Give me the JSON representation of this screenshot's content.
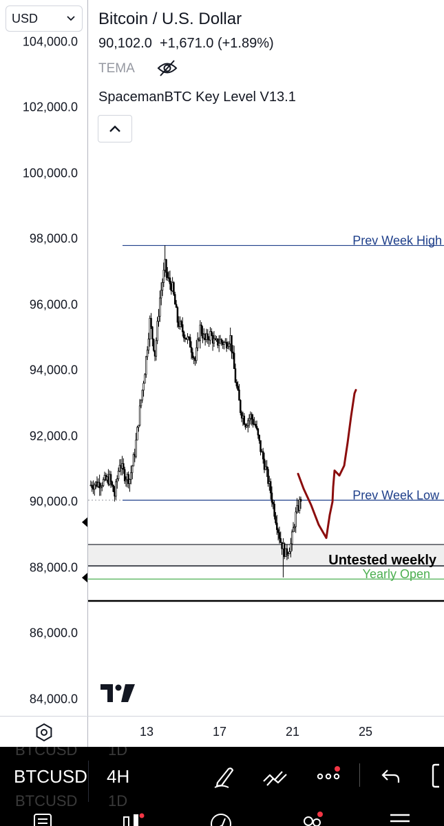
{
  "currency_selector": {
    "value": "USD"
  },
  "legend": {
    "title": "Bitcoin / U.S. Dollar",
    "price": "90,102.0",
    "change": "+1,671.0 (+1.89%)",
    "indicator_tema": "TEMA",
    "indicator_keylevel": "SpacemanBTC Key Level V13.1"
  },
  "price_axis": {
    "labels": [
      {
        "value": 104000,
        "text": "104,000.0"
      },
      {
        "value": 102000,
        "text": "102,000.0"
      },
      {
        "value": 100000,
        "text": "100,000.0"
      },
      {
        "value": 98000,
        "text": "98,000.0"
      },
      {
        "value": 96000,
        "text": "96,000.0"
      },
      {
        "value": 94000,
        "text": "94,000.0"
      },
      {
        "value": 92000,
        "text": "92,000.0"
      },
      {
        "value": 90000,
        "text": "90,000.0"
      },
      {
        "value": 88000,
        "text": "88,000.0"
      },
      {
        "value": 86000,
        "text": "86,000.0"
      },
      {
        "value": 84000,
        "text": "84,000.0"
      }
    ]
  },
  "time_axis": {
    "labels": [
      "13",
      "17",
      "21",
      "25"
    ]
  },
  "key_levels": {
    "prev_week_high": {
      "label": "Prev Week High",
      "price": 97800,
      "color": "#1e3f8a"
    },
    "prev_week_low": {
      "label": "Prev Week Low",
      "price": 90050,
      "color": "#1e3f8a"
    },
    "yearly_open": {
      "label": "Yearly Open",
      "price": 87650,
      "color": "#4caf50"
    },
    "untested_weekly": {
      "label": "Untested weekly",
      "top": 88700,
      "bottom": 88050
    }
  },
  "drawing": {
    "color": "#8b0d0d"
  },
  "toolbar": {
    "symbol": "BTCUSD",
    "timeframe": "4H",
    "ghost_symbol": "BTCUSD",
    "ghost_timeframe": "1D",
    "notification_color": "#f23645"
  }
}
